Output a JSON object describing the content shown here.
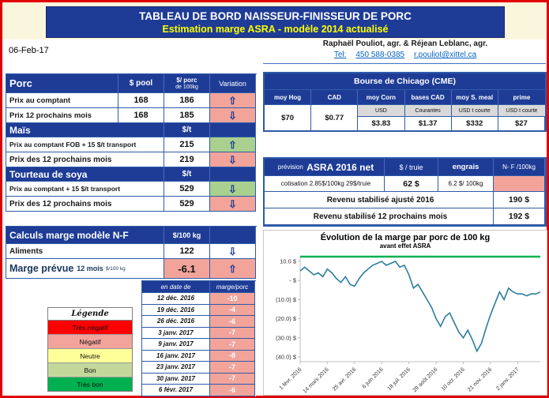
{
  "banner": {
    "title": "TABLEAU DE BORD NAISSEUR-FINISSEUR DE PORC",
    "subtitle": "Estimation marge ASRA - modèle 2014 actualisé"
  },
  "header": {
    "date": "06-Feb-17",
    "authors": "Raphaël Pouliot, agr.   &   Réjean Leblanc, agr.",
    "tel_label": "Tel:",
    "phone": "450 588-0385",
    "email": "r.pouliot@xittel.ca"
  },
  "porc": {
    "title": "Porc",
    "col_pool": "$ pool",
    "col_porc_1": "$/ porc",
    "col_porc_2": "de 100kg",
    "col_variation": "Variation",
    "rows": [
      {
        "label": "Prix au comptant",
        "pool": "168",
        "value": "186",
        "arrow": "⇧",
        "bg": "#F2A49B"
      },
      {
        "label": "Prix 12 prochains mois",
        "pool": "168",
        "value": "185",
        "arrow": "⇩",
        "bg": "#F2A49B"
      }
    ]
  },
  "mais": {
    "title": "Maïs",
    "unit": "$/t",
    "rows": [
      {
        "label": "Prix au comptant FOB + 15 $/t transport",
        "value": "215",
        "arrow": "⇧",
        "bg": "#A9D08E"
      },
      {
        "label": "Prix des 12 prochains mois",
        "value": "219",
        "arrow": "⇩",
        "bg": "#F2A49B"
      }
    ]
  },
  "tourteau": {
    "title": "Tourteau de soya",
    "unit": "$/t",
    "rows": [
      {
        "label": "Prix au comptant + 15 $/t transport",
        "value": "529",
        "arrow": "⇩",
        "bg": "#A9D08E"
      },
      {
        "label": "Prix des 12 prochains mois",
        "value": "529",
        "arrow": "⇩",
        "bg": "#F2A49B"
      }
    ]
  },
  "calculs": {
    "title": "Calculs marge  modèle N-F",
    "unit": "$/100 kg",
    "aliments_label": "Aliments",
    "aliments_value": "122",
    "aliments_arrow": "⇩",
    "aliments_bg": "#FFFFFF",
    "marge_label": "Marge prévue",
    "marge_sub": "12 mois",
    "marge_unit": "$/100 kg",
    "marge_value": "-6.1",
    "marge_arrow": "⇧",
    "marge_bg": "#F2A49B"
  },
  "history": {
    "col_date": "en date de",
    "col_marge": "marge/porc",
    "rows": [
      {
        "date": "12 déc. 2016",
        "value": "-10"
      },
      {
        "date": "19 déc. 2016",
        "value": "-4"
      },
      {
        "date": "26 déc. 2016",
        "value": "-6"
      },
      {
        "date": "3 janv. 2017",
        "value": "-7"
      },
      {
        "date": "9 janv. 2017",
        "value": "-7"
      },
      {
        "date": "16 janv. 2017",
        "value": "-8"
      },
      {
        "date": "23 janv. 2017",
        "value": "-7"
      },
      {
        "date": "30 janv. 2017",
        "value": "-7"
      },
      {
        "date": "6 févr. 2017",
        "value": "-6"
      }
    ]
  },
  "legende": {
    "title": "Légende",
    "items": [
      {
        "label": "Très négatif",
        "color": "#FF0000"
      },
      {
        "label": "Négatif",
        "color": "#F2A49B"
      },
      {
        "label": "Neutre",
        "color": "#FFFF99"
      },
      {
        "label": "Bon",
        "color": "#C4D79B"
      },
      {
        "label": "Très bon",
        "color": "#00B050"
      }
    ]
  },
  "cme": {
    "title": "Bourse de Chicago (CME)",
    "columns": [
      {
        "header": "moy Hog",
        "sub": "",
        "value": "$70"
      },
      {
        "header": "CAD",
        "sub": "",
        "value": "$0.77"
      },
      {
        "header": "moy Corn",
        "sub": "USD",
        "value": "$3.83"
      },
      {
        "header": "bases CAD",
        "sub": "Courantes",
        "value": "$1.37"
      },
      {
        "header": "moy S. meal",
        "sub": "USD t courte",
        "value": "$332"
      },
      {
        "header": "prime",
        "sub": "USD t courte",
        "value": "$27"
      }
    ]
  },
  "asra": {
    "prevision": "prévision",
    "title": "ASRA 2016 net",
    "col_truie": "$ / truie",
    "col_engrais": "engrais",
    "col_nf": "N- F /100kg",
    "cotisation": "cotisation 2.85$/100kg 29$/truie",
    "truie_value": "62 $",
    "engrais_value": "6.2 $/ 100kg",
    "rev2016_label": "Revenu stabilisé ajusté 2016",
    "rev2016_value": "190 $",
    "rev12_label": "Revenu stabilisé 12 prochains mois",
    "rev12_value": "192 $"
  },
  "chart_data": {
    "type": "line",
    "title": "Évolution de la marge par porc de 100 kg",
    "subtitle": "avant effet ASRA",
    "xlabel": "",
    "ylabel": "",
    "ylim": [
      -42.5,
      12.5
    ],
    "y_ticks": [
      {
        "label": "10.0  $",
        "value": 10
      },
      {
        "label": "-    $",
        "value": 0
      },
      {
        "label": "(10.0) $",
        "value": -10
      },
      {
        "label": "(20.0) $",
        "value": -20
      },
      {
        "label": "(30.0) $",
        "value": -30
      },
      {
        "label": "(40.0) $",
        "value": -40
      }
    ],
    "x_tick_labels": [
      "1 févr. 2016",
      "14 mars 2016",
      "25 avr. 2016",
      "6 juin 2016",
      "18 juil. 2016",
      "29 août 2016",
      "10 oct. 2016",
      "21 nov. 2016",
      "2 janv. 2017"
    ],
    "x_tick_indices": [
      0,
      6,
      12,
      18,
      24,
      30,
      36,
      42,
      48
    ],
    "values": [
      5,
      7,
      5,
      3,
      4,
      2,
      6,
      4,
      1,
      -1,
      2,
      -2,
      -3,
      1,
      4,
      6,
      8,
      9,
      10,
      8,
      9,
      10,
      7,
      8,
      3,
      -4,
      -2,
      -6,
      -10,
      -14,
      -20,
      -24,
      -19,
      -17,
      -22,
      -27,
      -30,
      -26,
      -31,
      -37,
      -33,
      -25,
      -18,
      -12,
      -6,
      -10,
      -4,
      -6,
      -7,
      -7,
      -8,
      -7,
      -7,
      -6
    ],
    "line_color": "#2C7C9E",
    "top_line_color": "#00B050",
    "grid": false,
    "legend_position": "none"
  },
  "colors": {
    "navy": "#1E3C96",
    "grid_blue": "#2E5BA8",
    "salmon": "#F2A49B",
    "green": "#A9D08E",
    "link_blue": "#0563C1",
    "banner_yellow": "#FFFF00",
    "gray_cell": "#D9D9D9",
    "border_red": "#E00000"
  }
}
